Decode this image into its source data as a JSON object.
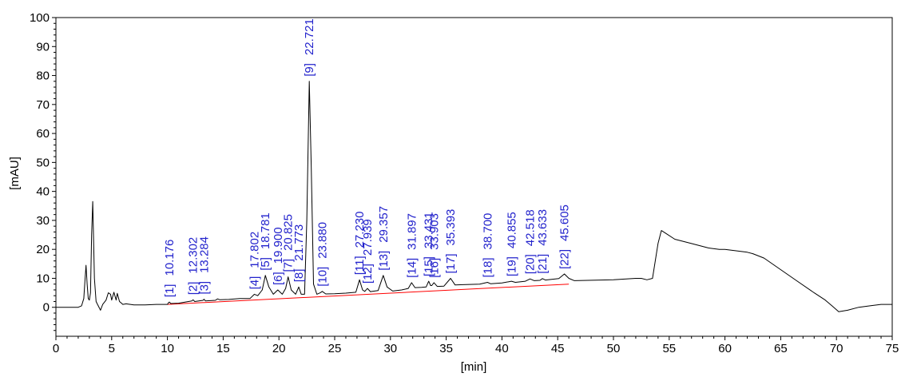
{
  "chart_data": {
    "type": "line",
    "title": "",
    "xlabel": "[min]",
    "ylabel": "[mAU]",
    "xlim": [
      0,
      75
    ],
    "ylim": [
      -10,
      100
    ],
    "xticks": [
      0,
      5,
      10,
      15,
      20,
      25,
      30,
      35,
      40,
      45,
      50,
      55,
      60,
      65,
      70,
      75
    ],
    "yticks": [
      0,
      10,
      20,
      30,
      40,
      50,
      60,
      70,
      80,
      90,
      100
    ],
    "grid": false,
    "colors": {
      "trace": "#000000",
      "baseline": "#ff0000",
      "labels": "#2222cc"
    },
    "baseline": {
      "x": [
        10.0,
        46.0
      ],
      "y": [
        1.0,
        8.0
      ]
    },
    "series": [
      {
        "x": [
          0,
          2.0,
          2.3,
          2.5,
          2.6,
          2.7,
          2.8,
          2.9,
          3.0,
          3.1,
          3.2,
          3.3,
          3.35,
          3.45,
          3.6,
          3.8,
          4.0,
          4.2,
          4.5,
          4.7,
          4.9,
          5.0,
          5.2,
          5.4,
          5.5,
          5.7,
          5.85,
          6.0,
          6.3,
          7.0,
          8.0,
          9.0,
          10.0,
          10.1,
          10.176,
          10.3,
          11.0,
          12.2,
          12.302,
          12.45,
          13.2,
          13.284,
          13.4,
          14.3,
          14.5,
          14.7,
          15.5,
          16.5,
          17.4,
          17.802,
          18.1,
          18.5,
          18.781,
          19.1,
          19.5,
          19.9,
          20.3,
          20.6,
          20.825,
          21.1,
          21.5,
          21.773,
          22.0,
          22.3,
          22.5,
          22.721,
          22.9,
          23.1,
          23.4,
          23.7,
          23.88,
          24.2,
          25.0,
          26.0,
          26.9,
          27.23,
          27.5,
          27.7,
          27.939,
          28.2,
          28.9,
          29.357,
          29.7,
          30.2,
          31.0,
          31.6,
          31.897,
          32.2,
          32.8,
          33.2,
          33.431,
          33.6,
          33.7,
          33.903,
          34.2,
          34.8,
          35.393,
          35.8,
          36.5,
          38.0,
          38.7,
          39.0,
          40.0,
          40.855,
          41.2,
          42.1,
          42.518,
          42.9,
          43.4,
          43.633,
          43.9,
          45.1,
          45.605,
          46.0,
          46.5,
          50.0,
          52.0,
          52.5,
          53.0,
          53.5,
          54.0,
          54.3,
          54.7,
          55.5,
          57.0,
          58.5,
          59.5,
          60.0,
          61.0,
          62.0,
          62.5,
          63.5,
          65.0,
          66.5,
          68.0,
          69.0,
          69.6,
          70.2,
          71.0,
          72.0,
          73.0,
          74.0,
          75.0
        ],
        "y": [
          0,
          0,
          0.5,
          3.0,
          9.0,
          14.5,
          8.0,
          3.0,
          2.5,
          5.0,
          25.0,
          36.5,
          28.0,
          10.0,
          2.0,
          0.5,
          -1.0,
          1.0,
          2.5,
          5.0,
          4.5,
          2.5,
          5.2,
          2.5,
          4.8,
          2.0,
          1.5,
          1.0,
          1.2,
          0.8,
          0.8,
          1.0,
          1.0,
          1.6,
          1.8,
          1.3,
          1.4,
          2.2,
          2.6,
          2.0,
          2.4,
          2.8,
          2.2,
          2.4,
          2.9,
          2.6,
          2.7,
          3.0,
          3.0,
          4.5,
          4.0,
          6.0,
          11.0,
          7.0,
          4.5,
          6.0,
          4.5,
          6.5,
          10.5,
          6.0,
          4.5,
          7.0,
          4.5,
          4.5,
          30.0,
          78.0,
          48.0,
          8.0,
          4.5,
          5.0,
          5.5,
          4.6,
          4.7,
          4.9,
          5.2,
          9.5,
          6.0,
          5.5,
          6.5,
          5.4,
          5.8,
          11.0,
          7.0,
          5.6,
          6.0,
          6.5,
          8.5,
          6.8,
          6.9,
          7.0,
          9.0,
          7.5,
          7.5,
          8.5,
          7.2,
          7.3,
          10.0,
          7.7,
          7.8,
          8.0,
          8.6,
          8.1,
          8.4,
          9.0,
          8.6,
          9.0,
          9.8,
          9.2,
          9.3,
          9.9,
          9.4,
          9.9,
          11.5,
          10.0,
          9.2,
          9.5,
          10.0,
          10.0,
          9.5,
          10.0,
          22.0,
          26.5,
          25.5,
          23.5,
          22.0,
          20.5,
          20.0,
          20.0,
          19.5,
          19.0,
          18.5,
          17.0,
          13.0,
          9.0,
          5.0,
          2.5,
          0.5,
          -1.5,
          -1.0,
          0.0,
          0.5,
          1.0,
          1.0
        ]
      }
    ],
    "peaks": [
      {
        "n": "[1]",
        "t": "10.176",
        "x": 10.176,
        "y": 1.8
      },
      {
        "n": "[2]",
        "t": "12.302",
        "x": 12.302,
        "y": 2.6
      },
      {
        "n": "[3]",
        "t": "13.284",
        "x": 13.284,
        "y": 2.8
      },
      {
        "n": "[4]",
        "t": "17.802",
        "x": 17.802,
        "y": 4.5
      },
      {
        "n": "[5]",
        "t": "18.781",
        "x": 18.781,
        "y": 11.0
      },
      {
        "n": "[6]",
        "t": "19.900",
        "x": 19.9,
        "y": 6.0
      },
      {
        "n": "[7]",
        "t": "20.825",
        "x": 20.825,
        "y": 10.5
      },
      {
        "n": "[8]",
        "t": "21.773",
        "x": 21.773,
        "y": 7.0
      },
      {
        "n": "[9]",
        "t": "22.721",
        "x": 22.721,
        "y": 78.0
      },
      {
        "n": "[10]",
        "t": "23.880",
        "x": 23.88,
        "y": 5.5
      },
      {
        "n": "[11]",
        "t": "27.230",
        "x": 27.23,
        "y": 9.5
      },
      {
        "n": "[12]",
        "t": "27.939",
        "x": 27.939,
        "y": 6.5
      },
      {
        "n": "[13]",
        "t": "29.357",
        "x": 29.357,
        "y": 11.0
      },
      {
        "n": "[14]",
        "t": "31.897",
        "x": 31.897,
        "y": 8.5
      },
      {
        "n": "[15]",
        "t": "33.431",
        "x": 33.431,
        "y": 9.0
      },
      {
        "n": "[16]",
        "t": "33.903",
        "x": 33.903,
        "y": 8.5
      },
      {
        "n": "[17]",
        "t": "35.393",
        "x": 35.393,
        "y": 10.0
      },
      {
        "n": "[18]",
        "t": "38.700",
        "x": 38.7,
        "y": 8.6
      },
      {
        "n": "[19]",
        "t": "40.855",
        "x": 40.855,
        "y": 9.0
      },
      {
        "n": "[20]",
        "t": "42.518",
        "x": 42.518,
        "y": 9.8
      },
      {
        "n": "[21]",
        "t": "43.633",
        "x": 43.633,
        "y": 9.9
      },
      {
        "n": "[22]",
        "t": "45.605",
        "x": 45.605,
        "y": 11.5
      }
    ]
  }
}
